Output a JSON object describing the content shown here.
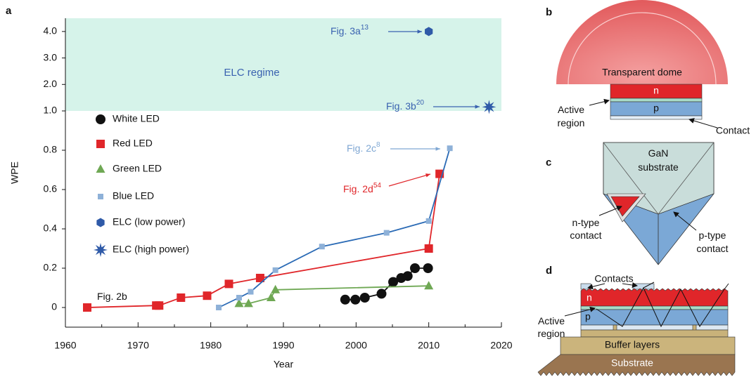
{
  "panel_labels": [
    "a",
    "b",
    "c",
    "d"
  ],
  "chart_data": {
    "type": "line",
    "x_label": "Year",
    "y_label": "WPE",
    "regime_label": "ELC regime",
    "regime_color": "#d6f3ea",
    "xlim": [
      1960,
      2020
    ],
    "xticks": [
      1960,
      1970,
      1980,
      1990,
      2000,
      2010,
      2020
    ],
    "xminorticks": [
      1965,
      1975,
      1985,
      1995,
      2005,
      2015
    ],
    "ylim": [
      -0.1,
      4.5
    ],
    "y_break": 1.0,
    "yticks": [
      0,
      0.2,
      0.4,
      0.6,
      0.8,
      {
        "value": 1,
        "label": "1.0"
      },
      {
        "value": 2,
        "label": "2.0"
      },
      {
        "value": 3,
        "label": "3.0"
      },
      {
        "value": 4,
        "label": "4.0"
      }
    ],
    "series": [
      {
        "name": "White LED",
        "marker": "circle",
        "color": "#111111",
        "marker_color": "#111111",
        "line": true,
        "x": [
          1998.5,
          1999.9,
          2001.2,
          2003.5,
          2005.1,
          2006.2,
          2007.1,
          2008.1,
          2009.9
        ],
        "values": [
          0.04,
          0.04,
          0.05,
          0.07,
          0.13,
          0.15,
          0.16,
          0.2,
          0.2
        ]
      },
      {
        "name": "Red LED",
        "marker": "square",
        "color": "#e0262a",
        "marker_color": "#e0262a",
        "line": true,
        "x": [
          1963.0,
          1972.5,
          1972.9,
          1975.9,
          1979.5,
          1982.5,
          1986.8,
          2010.0,
          2011.5
        ],
        "values": [
          0,
          0.01,
          0.01,
          0.05,
          0.06,
          0.12,
          0.15,
          0.3,
          0.68
        ]
      },
      {
        "name": "Green LED",
        "marker": "triangle",
        "color": "#6fa854",
        "marker_color": "#6fa854",
        "line": true,
        "x": [
          1983.9,
          1985.2,
          1988.3,
          1988.9,
          2010.0
        ],
        "values": [
          0.02,
          0.02,
          0.05,
          0.09,
          0.11
        ]
      },
      {
        "name": "Blue LED",
        "marker": "smallsquare",
        "color": "#2a6ab5",
        "marker_color": "#8eb1d8",
        "line": true,
        "x": [
          1981.1,
          1983.9,
          1985.5,
          1988.9,
          1995.3,
          2004.2,
          2010.0,
          2012.9
        ],
        "values": [
          0,
          0.05,
          0.08,
          0.19,
          0.31,
          0.38,
          0.44,
          0.81
        ]
      },
      {
        "name": "ELC (low power)",
        "marker": "hexagon",
        "color": "#2f5aa8",
        "marker_color": "#2f5aa8",
        "line": false,
        "x": [
          2010.0
        ],
        "values": [
          4.0
        ]
      },
      {
        "name": "ELC (high power)",
        "marker": "star",
        "color": "#2f5aa8",
        "marker_color": "#2f5aa8",
        "line": false,
        "x": [
          2018.3
        ],
        "values": [
          1.15
        ]
      }
    ],
    "annotations": [
      {
        "text": "Fig. 3a",
        "sup": "13",
        "color": "#3a62b0"
      },
      {
        "text": "Fig. 3b",
        "sup": "20",
        "color": "#3a62b0"
      },
      {
        "text": "Fig. 2c",
        "sup": "8",
        "color": "#7fa7d3"
      },
      {
        "text": "Fig. 2d",
        "sup": "54",
        "color": "#e0262a"
      },
      {
        "text": "Fig. 2b",
        "color": "#111111"
      }
    ]
  },
  "diagram_b": {
    "dome": "Transparent dome",
    "n": "n",
    "p": "p",
    "active": [
      "Active",
      "region"
    ],
    "contact": "Contact"
  },
  "diagram_c": {
    "substrate": [
      "GaN",
      "substrate"
    ],
    "n_contact": [
      "n-type",
      "contact"
    ],
    "p_contact": [
      "p-type",
      "contact"
    ]
  },
  "diagram_d": {
    "contacts": "Contacts",
    "n": "n",
    "p": "p",
    "active": [
      "Active",
      "region"
    ],
    "buffer": "Buffer layers",
    "substrate": "Substrate"
  }
}
